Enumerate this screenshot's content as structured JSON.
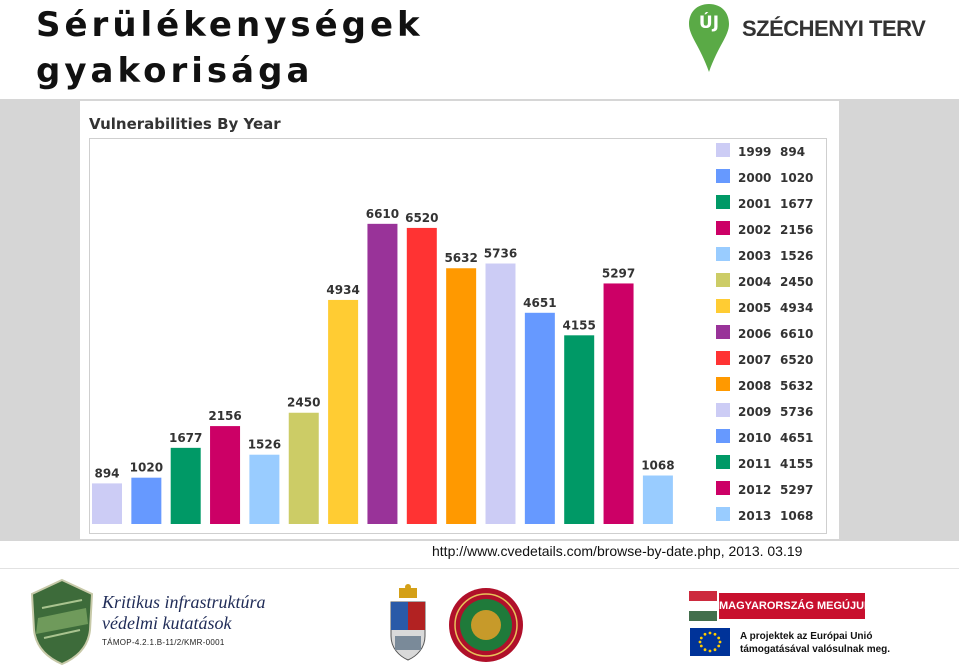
{
  "slide": {
    "title_line1": "Sérülékenységek",
    "title_line2": "gyakorisága",
    "source": "http://www.cvedetails.com/browse-by-date.php, 2013. 03.19"
  },
  "header_logo": {
    "pin_text": "ÚJ",
    "brand": "SZÉCHENYI TERV",
    "color": "#5aaa46"
  },
  "chart_data": {
    "type": "bar",
    "title": "Vulnerabilities By Year",
    "categories": [
      "1999",
      "2000",
      "2001",
      "2002",
      "2003",
      "2004",
      "2005",
      "2006",
      "2007",
      "2008",
      "2009",
      "2010",
      "2011",
      "2012",
      "2013"
    ],
    "values": [
      894,
      1020,
      1677,
      2156,
      1526,
      2450,
      4934,
      6610,
      6520,
      5632,
      5736,
      4651,
      4155,
      5297,
      1068
    ],
    "colors": [
      "#ccccf5",
      "#6699ff",
      "#009966",
      "#cc0066",
      "#99ccff",
      "#cccc66",
      "#ffcc33",
      "#993399",
      "#ff3333",
      "#ff9900",
      "#ccccf5",
      "#6699ff",
      "#009966",
      "#cc0066",
      "#99ccff"
    ],
    "ylim": [
      0,
      8500
    ],
    "xlabel": "",
    "ylabel": "",
    "grid": false,
    "legend": "right"
  },
  "footer": {
    "institute_line1": "Kritikus infrastruktúra",
    "institute_line2": "védelmi kutatások",
    "project_code": "TÁMOP-4.2.1.B-11/2/KMR-0001",
    "banner": "MAGYARORSZÁG MEGÚJUL",
    "eu_line1": "A projektek az Európai Unió",
    "eu_line2": "támogatásával valósulnak meg."
  }
}
